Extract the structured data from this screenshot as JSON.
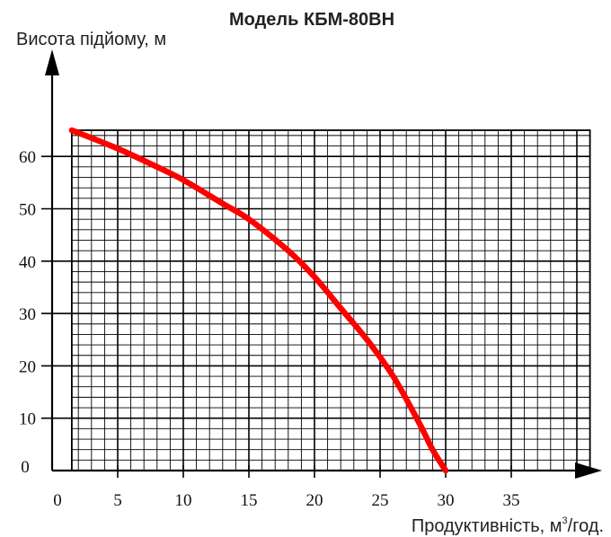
{
  "chart_data": {
    "type": "line",
    "title": "Модель КБМ-80ВН",
    "ylabel": "Висота підйому, м",
    "xlabel_main": "Продуктивність, м",
    "xlabel_sup": "3",
    "xlabel_tail": "/год.",
    "xlim": [
      0,
      41
    ],
    "ylim": [
      0,
      72
    ],
    "x_ticks": [
      0,
      5,
      10,
      15,
      20,
      25,
      30,
      35
    ],
    "x_tick_labels": [
      "0",
      "5",
      "10",
      "15",
      "20",
      "25",
      "30",
      "35"
    ],
    "y_ticks": [
      10,
      20,
      30,
      40,
      50,
      60
    ],
    "y_tick_labels": [
      "10",
      "20",
      "30",
      "40",
      "50",
      "60"
    ],
    "y_origin_label": "0",
    "grid": true,
    "series": [
      {
        "color": "#ff0000",
        "x": [
          1.5,
          5,
          8,
          10,
          13,
          15,
          18,
          20,
          22,
          24,
          26,
          28,
          29,
          30
        ],
        "y": [
          65,
          61.5,
          58,
          55.5,
          51,
          48,
          42,
          37,
          31,
          25,
          18,
          9,
          4,
          0
        ]
      }
    ]
  }
}
